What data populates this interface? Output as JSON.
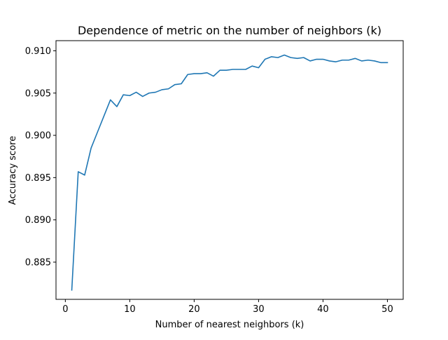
{
  "chart_data": {
    "type": "line",
    "title": "Dependence of metric on the number of neighbors (k)",
    "xlabel": "Number of nearest neighbors (k)",
    "ylabel": "Accuracy score",
    "xlim": [
      -1.45,
      52.45
    ],
    "ylim": [
      0.8806,
      0.9112
    ],
    "xticks": [
      0,
      10,
      20,
      30,
      40,
      50
    ],
    "xtick_labels": [
      "0",
      "10",
      "20",
      "30",
      "40",
      "50"
    ],
    "yticks": [
      0.885,
      0.89,
      0.895,
      0.9,
      0.905,
      0.91
    ],
    "ytick_labels": [
      "0.885",
      "0.890",
      "0.895",
      "0.900",
      "0.905",
      "0.910"
    ],
    "grid": false,
    "legend": "none",
    "series": [
      {
        "color": "#1f77b4",
        "x": [
          1,
          2,
          3,
          4,
          5,
          6,
          7,
          8,
          9,
          10,
          11,
          12,
          13,
          14,
          15,
          16,
          17,
          18,
          19,
          20,
          21,
          22,
          23,
          24,
          25,
          26,
          27,
          28,
          29,
          30,
          31,
          32,
          33,
          34,
          35,
          36,
          37,
          38,
          39,
          40,
          41,
          42,
          43,
          44,
          45,
          46,
          47,
          48,
          49,
          50
        ],
        "y": [
          0.8817,
          0.8957,
          0.8953,
          0.8985,
          0.9004,
          0.9023,
          0.9042,
          0.9034,
          0.9048,
          0.9047,
          0.9051,
          0.9046,
          0.905,
          0.9051,
          0.9054,
          0.9055,
          0.906,
          0.9061,
          0.9072,
          0.9073,
          0.9073,
          0.9074,
          0.907,
          0.9077,
          0.9077,
          0.9078,
          0.9078,
          0.9078,
          0.9082,
          0.908,
          0.909,
          0.9093,
          0.9092,
          0.9095,
          0.9092,
          0.9091,
          0.9092,
          0.9088,
          0.909,
          0.909,
          0.9088,
          0.9087,
          0.9089,
          0.9089,
          0.9091,
          0.9088,
          0.9089,
          0.9088,
          0.9086,
          0.9086
        ]
      }
    ]
  }
}
